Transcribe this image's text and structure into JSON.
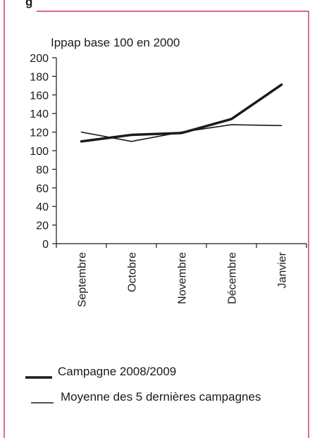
{
  "page": {
    "title_fragment": "g"
  },
  "colors": {
    "border": "#c8102e",
    "series_main": "#1a1a1a",
    "series_avg": "#1a1a1a",
    "axis": "#1a1a1a"
  },
  "chart_data": {
    "type": "line",
    "title": "",
    "unit_label": "Ippap base 100 en 2000",
    "xlabel": "",
    "ylabel": "",
    "categories": [
      "Septembre",
      "Octobre",
      "Novembre",
      "Décembre",
      "Janvier"
    ],
    "ylim": [
      0,
      200
    ],
    "yticks": [
      0,
      20,
      40,
      60,
      80,
      100,
      120,
      140,
      160,
      180,
      200
    ],
    "grid": false,
    "legend_position": "bottom",
    "series": [
      {
        "name": "Campagne 2008/2009",
        "style": "thick",
        "values": [
          110,
          117,
          119,
          134,
          171
        ]
      },
      {
        "name": "Moyenne des 5 dernières campagnes",
        "style": "thin",
        "values": [
          120,
          110,
          120,
          128,
          127
        ]
      }
    ]
  }
}
